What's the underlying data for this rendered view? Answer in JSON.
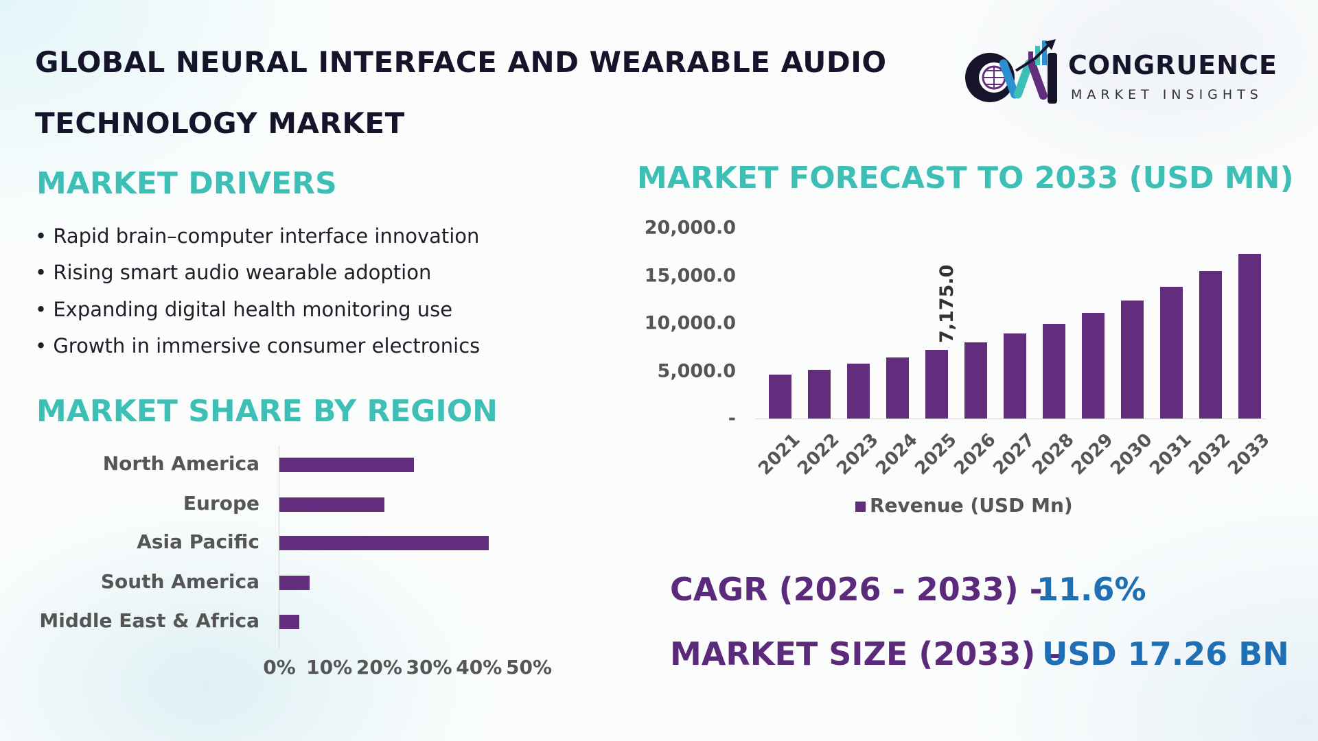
{
  "header": {
    "title_line1": "GLOBAL NEURAL INTERFACE AND WEARABLE AUDIO",
    "title_line2": "TECHNOLOGY MARKET"
  },
  "logo": {
    "name": "CONGRUENCE",
    "tagline": "MARKET INSIGHTS",
    "mark": "CM"
  },
  "drivers": {
    "heading": "MARKET DRIVERS",
    "items": [
      "Rapid brain–computer interface innovation",
      "Rising smart audio wearable adoption",
      "Expanding digital health monitoring use",
      "Growth in immersive consumer electronics"
    ]
  },
  "colors": {
    "bar": "#622d7c",
    "heading": "#3ebfb6",
    "label_purple": "#5b2a7a",
    "value_blue": "#1f6fb5"
  },
  "chart_data": [
    {
      "type": "bar",
      "orientation": "horizontal",
      "title": "MARKET SHARE BY REGION",
      "categories": [
        "North America",
        "Europe",
        "Asia Pacific",
        "South America",
        "Middle East & Africa"
      ],
      "values": [
        27,
        21,
        42,
        6,
        4
      ],
      "unit": "%",
      "xlim": [
        0,
        50
      ],
      "xticks": [
        "0%",
        "10%",
        "20%",
        "30%",
        "40%",
        "50%"
      ],
      "grid": false
    },
    {
      "type": "bar",
      "title": "MARKET FORECAST TO 2033 (USD MN)",
      "categories": [
        "2021",
        "2022",
        "2023",
        "2024",
        "2025",
        "2026",
        "2027",
        "2028",
        "2029",
        "2030",
        "2031",
        "2032",
        "2033"
      ],
      "series": [
        {
          "name": "Revenue (USD Mn)",
          "values": [
            4610,
            5110,
            5760,
            6410,
            7175,
            7990,
            8930,
            9930,
            11080,
            12380,
            13820,
            15480,
            17260
          ]
        }
      ],
      "data_labels": [
        {
          "category": "2025",
          "text": "7,175.0"
        }
      ],
      "ylim": [
        0,
        20000
      ],
      "yticks": [
        "20,000.0",
        "15,000.0",
        "10,000.0",
        "5,000.0",
        "-"
      ],
      "legend": "bottom",
      "grid": false
    }
  ],
  "stats": {
    "cagr_label": "CAGR (2026 - 2033) -",
    "cagr_value": "11.6%",
    "size_label": "MARKET SIZE (2033) –",
    "size_value": "USD 17.26 BN"
  }
}
